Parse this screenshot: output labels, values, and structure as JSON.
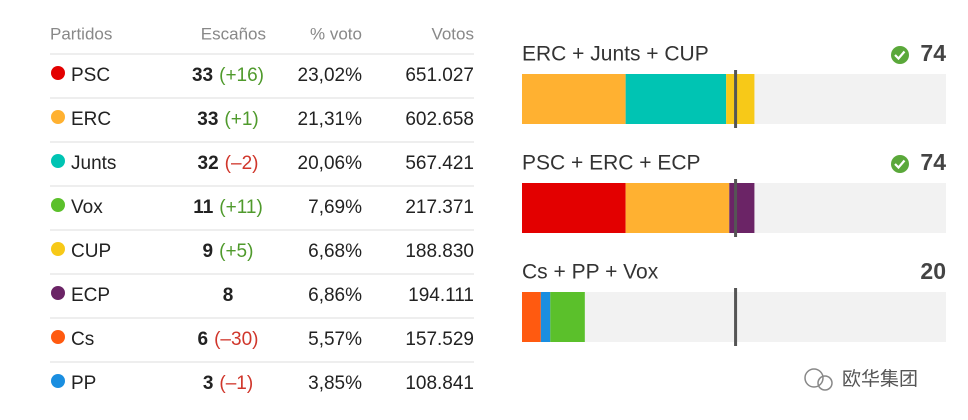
{
  "table": {
    "headers": [
      "Partidos",
      "Escaños",
      "% voto",
      "Votos"
    ],
    "rows": [
      {
        "party": "PSC",
        "color": "#e30000",
        "seats": 33,
        "change": "(+16)",
        "pct": "23,02%",
        "votes": "651.027"
      },
      {
        "party": "ERC",
        "color": "#ffb131",
        "seats": 33,
        "change": "(+1)",
        "pct": "21,31%",
        "votes": "602.658"
      },
      {
        "party": "Junts",
        "color": "#00c4b3",
        "seats": 32,
        "change": "(–2)",
        "pct": "20,06%",
        "votes": "567.421"
      },
      {
        "party": "Vox",
        "color": "#5bc02b",
        "seats": 11,
        "change": "(+11)",
        "pct": "7,69%",
        "votes": "217.371"
      },
      {
        "party": "CUP",
        "color": "#f7c918",
        "seats": 9,
        "change": "(+5)",
        "pct": "6,68%",
        "votes": "188.830"
      },
      {
        "party": "ECP",
        "color": "#6b2466",
        "seats": 8,
        "pct": "6,86%",
        "votes": "194.111"
      },
      {
        "party": "Cs",
        "color": "#ff5a10",
        "seats": 6,
        "change": "(–30)",
        "pct": "5,57%",
        "votes": "157.529"
      },
      {
        "party": "PP",
        "color": "#1a8ee0",
        "seats": 3,
        "change": "(–1)",
        "pct": "3,85%",
        "votes": "108.841"
      }
    ]
  },
  "coalitions": {
    "xlim": [
      0,
      135
    ],
    "majority": 68,
    "items": [
      {
        "name": "ERC + Junts + CUP",
        "total": 74,
        "check": true,
        "segments": [
          {
            "color": "#ffb131",
            "value": 33
          },
          {
            "color": "#00c4b3",
            "value": 32
          },
          {
            "color": "#f7c918",
            "value": 9
          }
        ]
      },
      {
        "name": "PSC + ERC + ECP",
        "total": 74,
        "check": true,
        "segments": [
          {
            "color": "#e30000",
            "value": 33
          },
          {
            "color": "#ffb131",
            "value": 33
          },
          {
            "color": "#6b2466",
            "value": 8
          }
        ]
      },
      {
        "name": "Cs + PP + Vox",
        "total": 20,
        "check": false,
        "segments": [
          {
            "color": "#ff5a10",
            "value": 6
          },
          {
            "color": "#1a8ee0",
            "value": 3
          },
          {
            "color": "#5bc02b",
            "value": 11
          }
        ]
      }
    ]
  },
  "watermark": "欧华集团"
}
